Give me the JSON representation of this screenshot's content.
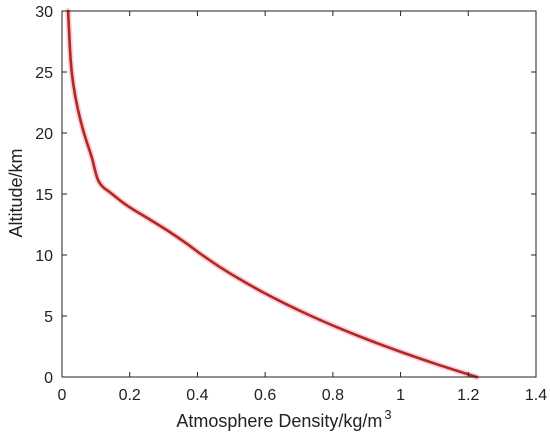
{
  "chart_data": {
    "type": "line",
    "xlabel": "Atmosphere Density/kg/m",
    "xlabel_superscript": "3",
    "ylabel": "Altitude/km",
    "xlim": [
      0,
      1.4
    ],
    "ylim": [
      0,
      30
    ],
    "xticks": [
      "0",
      "0.2",
      "0.4",
      "0.6",
      "0.8",
      "1",
      "1.2",
      "1.4"
    ],
    "yticks": [
      "0",
      "5",
      "10",
      "15",
      "20",
      "25",
      "30"
    ],
    "grid": false,
    "colors": {
      "line": "#b22a17",
      "line_glow": "#f2a6c8",
      "axis": "#222222"
    },
    "series": [
      {
        "x": [
          1.225,
          1.112,
          1.007,
          0.909,
          0.819,
          0.736,
          0.66,
          0.59,
          0.526,
          0.467,
          0.414,
          0.365,
          0.312,
          0.254,
          0.195,
          0.148,
          0.109,
          0.088,
          0.0649,
          0.0465,
          0.0333,
          0.0255,
          0.018
        ],
        "y": [
          0,
          1,
          2,
          3,
          4,
          5,
          6,
          7,
          8,
          9,
          10,
          11,
          12,
          13,
          14,
          15,
          16,
          18,
          20,
          22,
          24,
          26,
          30
        ]
      }
    ]
  }
}
